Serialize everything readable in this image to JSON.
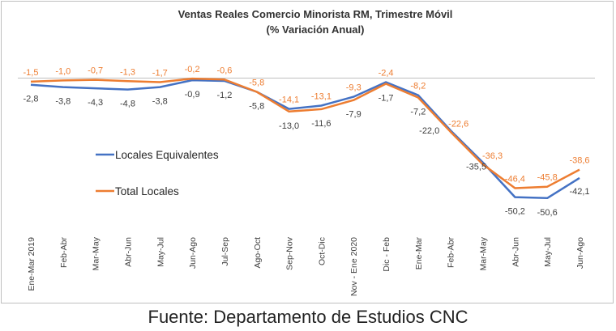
{
  "chart_data": {
    "type": "line",
    "title": "Ventas Reales Comercio Minorista RM, Trimestre Móvil",
    "subtitle": "(% Variación Anual)",
    "categories": [
      "Ene-Mar 2019",
      "Feb-Abr",
      "Mar-May",
      "Abr-Jun",
      "May-Jul",
      "Jun-Ago",
      "Jul-Sep",
      "Ago-Oct",
      "Sep-Nov",
      "Oct-Dic",
      "Nov - Ene 2020",
      "Dic - Feb",
      "Ene-Mar",
      "Feb-Abr",
      "Mar-May",
      "Abr-Jun",
      "May-Jul",
      "Jun-Ago"
    ],
    "series": [
      {
        "name": "Locales Equivalentes",
        "color": "#4472c4",
        "values": [
          -2.8,
          -3.8,
          -4.3,
          -4.8,
          -3.8,
          -0.9,
          -1.2,
          -5.8,
          -13.0,
          -11.6,
          -7.9,
          -1.7,
          -7.2,
          -22.0,
          -35.5,
          -50.2,
          -50.6,
          -42.1
        ],
        "labels": [
          "-2,8",
          "-3,8",
          "-4,3",
          "-4,8",
          "-3,8",
          "-0,9",
          "-1,2",
          "-5,8",
          "-13,0",
          "-11,6",
          "-7,9",
          "-1,7",
          "-7,2",
          "-22,0",
          "-35,5",
          "-50,2",
          "-50,6",
          "-42,1"
        ]
      },
      {
        "name": "Total Locales",
        "color": "#ed7d31",
        "values": [
          -1.5,
          -1.0,
          -0.7,
          -1.3,
          -1.7,
          -0.2,
          -0.6,
          -5.8,
          -14.1,
          -13.1,
          -9.3,
          -2.4,
          -8.2,
          -22.6,
          -36.3,
          -46.4,
          -45.8,
          -38.6
        ],
        "labels": [
          "-1,5",
          "-1,0",
          "-0,7",
          "-1,3",
          "-1,7",
          "-0,2",
          "-0,6",
          "-5,8",
          "-14,1",
          "-13,1",
          "-9,3",
          "-2,4",
          "-8,2",
          "-22,6",
          "-36,3",
          "-46,4",
          "-45,8",
          "-38,6"
        ]
      }
    ],
    "ylim": [
      -55,
      0
    ],
    "grid": false,
    "legend_placement": "left",
    "xlabel": "",
    "ylabel": ""
  },
  "footer": {
    "source": "Fuente: Departamento de Estudios CNC"
  }
}
